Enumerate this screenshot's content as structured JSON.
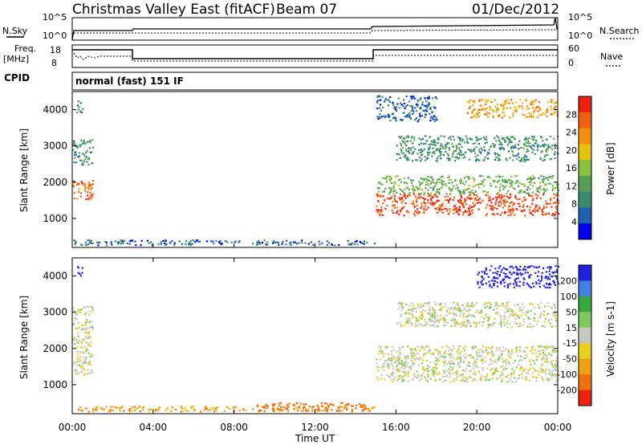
{
  "header": {
    "title": "Christmas Valley East (fitACF)",
    "beam": "Beam 07",
    "date": "01/Dec/2012"
  },
  "noise_panel": {
    "left_label": "N.Sky",
    "left_ticks": [
      "10^5",
      "10^0"
    ],
    "right_ticks": [
      "10^5",
      "10^0"
    ],
    "right_label": "N.Search"
  },
  "freq_panel": {
    "left_label_1": "Freq.",
    "left_label_2": "[MHz]",
    "left_ticks": [
      "18",
      "8"
    ],
    "right_ticks": [
      "60",
      "0"
    ],
    "right_label": "Nave"
  },
  "cpid": {
    "label": "CPID",
    "value": "normal (fast) 151 IF"
  },
  "colors": {
    "power_scale": [
      "#0000ee",
      "#2060b0",
      "#3a8a70",
      "#55a055",
      "#88c040",
      "#e8c010",
      "#f09010",
      "#f06010",
      "#ee2010"
    ],
    "velocity_scale": [
      "#2020e0",
      "#4080e0",
      "#38a838",
      "#80c860",
      "#c8c8c0",
      "#e8d020",
      "#f0a010",
      "#f07010",
      "#ee2010"
    ],
    "ground_scatter": "#c8c8c0"
  },
  "chart_data": [
    {
      "type": "heatmap",
      "name": "power",
      "ylabel": "Slant Range [km]",
      "yticks": [
        "1000",
        "2000",
        "3000",
        "4000"
      ],
      "ylim": [
        200,
        4500
      ],
      "xlim_hours": [
        0,
        24
      ],
      "colorbar": {
        "label": "Power [dB]",
        "ticks": [
          "4",
          "8",
          "12",
          "16",
          "20",
          "24",
          "28"
        ],
        "range": [
          0,
          32
        ]
      },
      "regions": [
        {
          "t": [
            0.0,
            1.0
          ],
          "r": [
            1500,
            2100
          ],
          "level": 26
        },
        {
          "t": [
            0.0,
            1.0
          ],
          "r": [
            2500,
            3200
          ],
          "level": 10
        },
        {
          "t": [
            0.2,
            0.5
          ],
          "r": [
            3900,
            4300
          ],
          "level": 8
        },
        {
          "t": [
            0.0,
            15.0
          ],
          "r": [
            280,
            420
          ],
          "level": 6
        },
        {
          "t": [
            15.0,
            24.0
          ],
          "r": [
            1100,
            1700
          ],
          "level": 28
        },
        {
          "t": [
            15.0,
            24.0
          ],
          "r": [
            1700,
            2200
          ],
          "level": 14
        },
        {
          "t": [
            16.0,
            24.0
          ],
          "r": [
            2600,
            3300
          ],
          "level": 10
        },
        {
          "t": [
            19.5,
            24.0
          ],
          "r": [
            3800,
            4300
          ],
          "level": 22
        },
        {
          "t": [
            15.0,
            18.0
          ],
          "r": [
            3700,
            4400
          ],
          "level": 6
        }
      ]
    },
    {
      "type": "heatmap",
      "name": "velocity",
      "ylabel": "Slant Range [km]",
      "yticks": [
        "1000",
        "2000",
        "3000",
        "4000"
      ],
      "ylim": [
        200,
        4500
      ],
      "xlim_hours": [
        0,
        24
      ],
      "xticks": [
        "00:00",
        "04:00",
        "08:00",
        "12:00",
        "16:00",
        "20:00",
        "00:00"
      ],
      "xlabel": "Time UT",
      "colorbar": {
        "label": "Velocity [m s-1]",
        "ticks": [
          "200",
          "100",
          "50",
          "15",
          "-15",
          "-50",
          "-100",
          "-200"
        ]
      },
      "regions": [
        {
          "t": [
            0.0,
            1.0
          ],
          "r": [
            1300,
            3200
          ],
          "value": 0
        },
        {
          "t": [
            0.2,
            0.5
          ],
          "r": [
            4000,
            4300
          ],
          "value": 200
        },
        {
          "t": [
            0.0,
            15.0
          ],
          "r": [
            280,
            420
          ],
          "value": -60
        },
        {
          "t": [
            9.0,
            14.5
          ],
          "r": [
            280,
            520
          ],
          "value": -110
        },
        {
          "t": [
            15.0,
            24.0
          ],
          "r": [
            1100,
            2100
          ],
          "value": 0
        },
        {
          "t": [
            16.0,
            24.0
          ],
          "r": [
            2600,
            3300
          ],
          "value": 0
        },
        {
          "t": [
            20.0,
            24.0
          ],
          "r": [
            3700,
            4300
          ],
          "value": 220
        }
      ]
    }
  ]
}
